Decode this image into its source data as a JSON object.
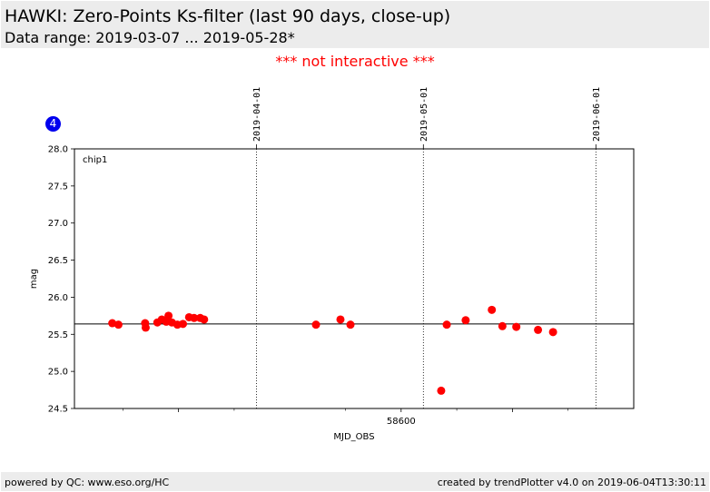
{
  "header": {
    "title": "HAWKI: Zero-Points Ks-filter (last 90 days, close-up)",
    "subtitle": "Data range: 2019-03-07 ... 2019-05-28*"
  },
  "notice": "*** not interactive ***",
  "badge": "4",
  "footer": {
    "left": "powered by QC: www.eso.org/HC",
    "right": "created by trendPlotter v4.0 on 2019-06-04T13:30:11"
  },
  "colors": {
    "points": "#ff0000",
    "badge": "#0000ee",
    "notice": "#ff0000"
  },
  "chart_data": {
    "type": "scatter",
    "panel_label": "chip1",
    "xlabel": "MJD_OBS",
    "ylabel": "mag",
    "xlim": [
      58541.3,
      58641.8
    ],
    "ylim": [
      24.5,
      28.0
    ],
    "yticks": [
      "24.5",
      "25.0",
      "25.5",
      "26.0",
      "26.5",
      "27.0",
      "27.5",
      "28.0"
    ],
    "xtick_labels": [
      {
        "x": 58600,
        "label": "58600"
      }
    ],
    "xtick_marks": [
      58560,
      58620
    ],
    "minor_xticks": [
      58550,
      58570,
      58590,
      58610,
      58630
    ],
    "reference_line": 25.64,
    "date_markers": [
      {
        "x": 58574,
        "label": "2019-04-01"
      },
      {
        "x": 58604,
        "label": "2019-05-01"
      },
      {
        "x": 58635,
        "label": "2019-06-01"
      }
    ],
    "points": [
      {
        "x": 58548.1,
        "y": 25.65
      },
      {
        "x": 58549.2,
        "y": 25.63
      },
      {
        "x": 58554.0,
        "y": 25.65
      },
      {
        "x": 58554.1,
        "y": 25.59
      },
      {
        "x": 58556.2,
        "y": 25.66
      },
      {
        "x": 58557.0,
        "y": 25.7
      },
      {
        "x": 58557.8,
        "y": 25.67
      },
      {
        "x": 58558.2,
        "y": 25.75
      },
      {
        "x": 58558.8,
        "y": 25.66
      },
      {
        "x": 58559.8,
        "y": 25.63
      },
      {
        "x": 58560.8,
        "y": 25.64
      },
      {
        "x": 58561.9,
        "y": 25.73
      },
      {
        "x": 58562.8,
        "y": 25.72
      },
      {
        "x": 58563.9,
        "y": 25.72
      },
      {
        "x": 58564.6,
        "y": 25.7
      },
      {
        "x": 58584.7,
        "y": 25.63
      },
      {
        "x": 58589.1,
        "y": 25.7
      },
      {
        "x": 58590.9,
        "y": 25.63
      },
      {
        "x": 58607.2,
        "y": 24.74
      },
      {
        "x": 58608.2,
        "y": 25.63
      },
      {
        "x": 58611.6,
        "y": 25.69
      },
      {
        "x": 58616.3,
        "y": 25.83
      },
      {
        "x": 58618.2,
        "y": 25.61
      },
      {
        "x": 58620.7,
        "y": 25.6
      },
      {
        "x": 58624.6,
        "y": 25.56
      },
      {
        "x": 58627.3,
        "y": 25.53
      }
    ]
  }
}
